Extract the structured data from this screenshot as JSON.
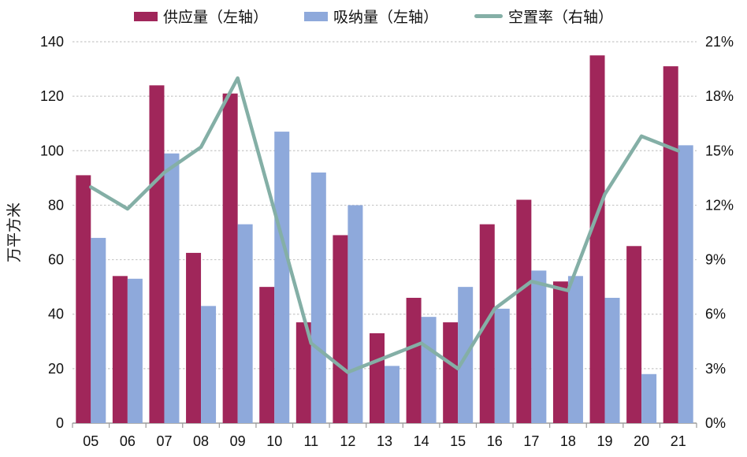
{
  "chart_data": {
    "type": "bar",
    "subtype": "grouped-bars-with-line-dual-axis",
    "categories": [
      "05",
      "06",
      "07",
      "08",
      "09",
      "10",
      "11",
      "12",
      "13",
      "14",
      "15",
      "16",
      "17",
      "18",
      "19",
      "20",
      "21"
    ],
    "series": [
      {
        "name": "供应量（左轴）",
        "type": "bar",
        "axis": "left",
        "color": "#A0265A",
        "values": [
          91,
          54,
          124,
          62.5,
          121,
          50,
          37,
          69,
          33,
          46,
          37,
          73,
          82,
          52,
          135,
          65,
          131
        ]
      },
      {
        "name": "吸纳量（左轴）",
        "type": "bar",
        "axis": "left",
        "color": "#8EA9DB",
        "values": [
          68,
          53,
          99,
          43,
          73,
          107,
          92,
          80,
          21,
          39,
          50,
          42,
          56,
          54,
          46,
          18,
          102
        ]
      },
      {
        "name": "空置率（右轴）",
        "type": "line",
        "axis": "right",
        "color": "#84AFA6",
        "values": [
          13.0,
          11.8,
          13.8,
          15.2,
          19.0,
          11.7,
          4.4,
          2.8,
          3.6,
          4.4,
          3.0,
          6.3,
          7.8,
          7.3,
          12.6,
          15.8,
          15.0
        ]
      }
    ],
    "left_axis": {
      "label": "万平方米",
      "min": 0,
      "max": 140,
      "step": 20,
      "ticks": [
        "0",
        "20",
        "40",
        "60",
        "80",
        "100",
        "120",
        "140"
      ]
    },
    "right_axis": {
      "label": "",
      "min": 0,
      "max": 21,
      "step": 3,
      "ticks": [
        "0%",
        "3%",
        "6%",
        "9%",
        "12%",
        "15%",
        "18%",
        "21%"
      ]
    },
    "grid": "horizontal dashed",
    "legend_position": "top-center",
    "colors": {
      "gridline": "#C8C8C8",
      "axis_line": "#9B9B9B",
      "text": "#111111"
    }
  }
}
